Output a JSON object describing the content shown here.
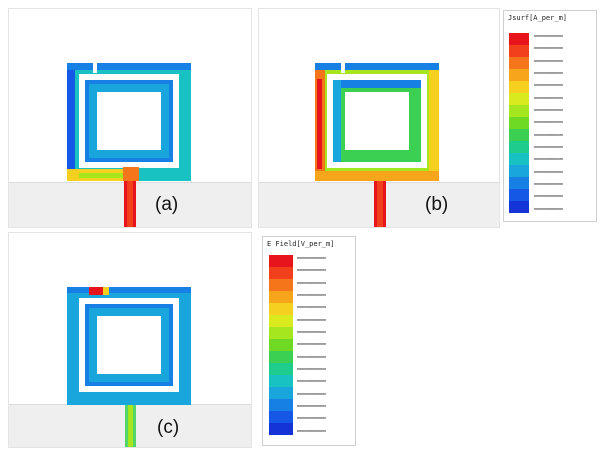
{
  "panels": [
    {
      "label": "(a)",
      "mode": "a"
    },
    {
      "label": "(b)",
      "mode": "b"
    },
    {
      "label": "(c)",
      "mode": "c"
    }
  ],
  "legend_top": {
    "title": "Jsurf[A_per_m]",
    "colors": [
      "#e8141c",
      "#f2401c",
      "#f5761a",
      "#f7a61c",
      "#f5d01e",
      "#d9ea1f",
      "#a6e61e",
      "#6fda24",
      "#3bd052",
      "#1ecc8e",
      "#18c2c2",
      "#18a6dc",
      "#1680e4",
      "#1658e6",
      "#1434d8"
    ]
  },
  "legend_bottom": {
    "title": "E Field[V_per_m]",
    "colors": [
      "#e8141c",
      "#f2401c",
      "#f5761a",
      "#f7a61c",
      "#f5d01e",
      "#d9ea1f",
      "#a6e61e",
      "#6fda24",
      "#3bd052",
      "#1ecc8e",
      "#18c2c2",
      "#18a6dc",
      "#1680e4",
      "#1658e6",
      "#1434d8"
    ]
  },
  "colors": {
    "high": "#e8141c",
    "mid_high": "#f5d01e",
    "mid": "#3bd052",
    "mid_low": "#18c2c2",
    "low": "#1658e6",
    "feed_c": "#52d66a"
  }
}
